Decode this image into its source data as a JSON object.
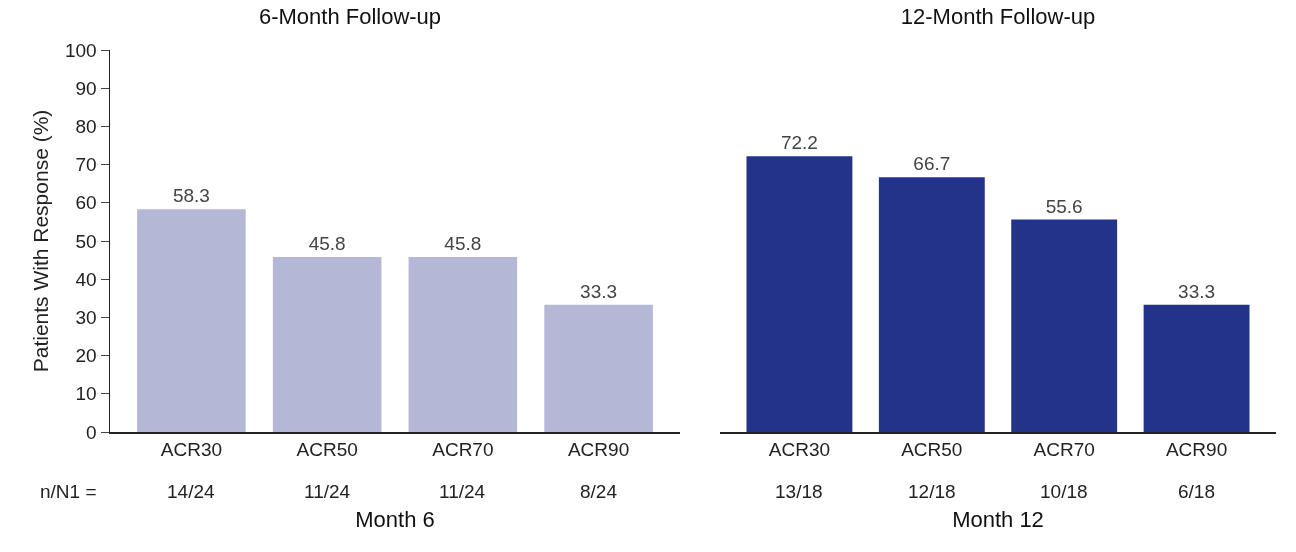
{
  "chart_data": [
    {
      "type": "bar",
      "title": "6-Month Follow-up",
      "xlabel": "Month 6",
      "ylabel": "Patients With Response (%)",
      "categories": [
        "ACR30",
        "ACR50",
        "ACR70",
        "ACR90"
      ],
      "values": [
        58.3,
        45.8,
        45.8,
        33.3
      ],
      "color": "#b4b7d6",
      "data_labels": true,
      "ylim": [
        0,
        100
      ],
      "yticks": [
        0,
        10,
        20,
        30,
        40,
        50,
        60,
        70,
        80,
        90,
        100
      ],
      "annotations": [
        "n/N1 =",
        "14/24",
        "11/24",
        "11/24",
        "8/24"
      ]
    },
    {
      "type": "bar",
      "title": "12-Month Follow-up",
      "xlabel": "Month 12",
      "categories": [
        "ACR30",
        "ACR50",
        "ACR70",
        "ACR90"
      ],
      "values": [
        72.2,
        66.7,
        55.6,
        33.3
      ],
      "color": "#23338a",
      "data_labels": true,
      "ylim": [
        0,
        100
      ],
      "yticks": [
        0,
        10,
        20,
        30,
        40,
        50,
        60,
        70,
        80,
        90,
        100
      ],
      "tick_labels": "x",
      "annotations": [
        "13/18",
        "12/18",
        "10/18",
        "6/18"
      ]
    }
  ]
}
